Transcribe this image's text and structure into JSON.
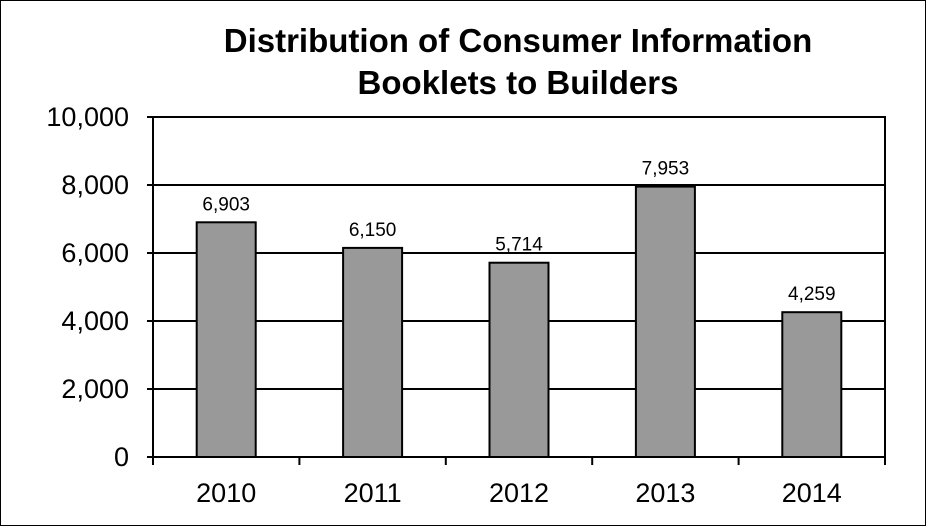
{
  "chart_data": {
    "type": "bar",
    "title_lines": [
      "Distribution of Consumer Information",
      "Booklets to Builders"
    ],
    "categories": [
      "2010",
      "2011",
      "2012",
      "2013",
      "2014"
    ],
    "values": [
      6903,
      6150,
      5714,
      7953,
      4259
    ],
    "data_labels": [
      "6,903",
      "6,150",
      "5,714",
      "7,953",
      "4,259"
    ],
    "y_ticks": [
      {
        "value": 0,
        "label": "0"
      },
      {
        "value": 2000,
        "label": "2,000"
      },
      {
        "value": 4000,
        "label": "4,000"
      },
      {
        "value": 6000,
        "label": "6,000"
      },
      {
        "value": 8000,
        "label": "8,000"
      },
      {
        "value": 10000,
        "label": "10,000"
      }
    ],
    "ylim": [
      0,
      10000
    ],
    "grid": true,
    "bar_color": "#999999",
    "legend": "none"
  }
}
